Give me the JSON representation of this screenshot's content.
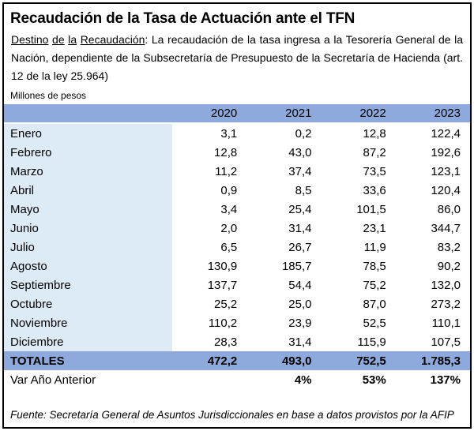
{
  "title": "Recaudación de la Tasa de Actuación ante el TFN",
  "intro": {
    "lead": "Destino de la Recaudación",
    "rest": ": La recaudación de la tasa ingresa a la Tesorería General de la Nación, dependiente de la Subsecretaría de Presupuesto de la Secretaría de Hacienda (art. 12 de la ley 25.964)"
  },
  "unit_label": "Millones de pesos",
  "table": {
    "year_headers": [
      "2020",
      "2021",
      "2022",
      "2023"
    ],
    "rows": [
      {
        "month": "Enero",
        "values": [
          "3,1",
          "0,2",
          "12,8",
          "122,4"
        ]
      },
      {
        "month": "Febrero",
        "values": [
          "12,8",
          "43,0",
          "87,2",
          "192,6"
        ]
      },
      {
        "month": "Marzo",
        "values": [
          "11,2",
          "37,4",
          "73,5",
          "123,1"
        ]
      },
      {
        "month": "Abril",
        "values": [
          "0,9",
          "8,5",
          "33,6",
          "120,4"
        ]
      },
      {
        "month": "Mayo",
        "values": [
          "3,4",
          "25,4",
          "101,5",
          "86,0"
        ]
      },
      {
        "month": "Junio",
        "values": [
          "2,0",
          "31,4",
          "23,1",
          "344,7"
        ]
      },
      {
        "month": "Julio",
        "values": [
          "6,5",
          "26,7",
          "11,9",
          "83,2"
        ]
      },
      {
        "month": "Agosto",
        "values": [
          "130,9",
          "185,7",
          "78,5",
          "90,2"
        ]
      },
      {
        "month": "Septiembre",
        "values": [
          "137,7",
          "54,4",
          "75,2",
          "132,0"
        ]
      },
      {
        "month": "Octubre",
        "values": [
          "25,2",
          "25,0",
          "87,0",
          "273,2"
        ]
      },
      {
        "month": "Noviembre",
        "values": [
          "110,2",
          "23,9",
          "52,5",
          "110,1"
        ]
      },
      {
        "month": "Diciembre",
        "values": [
          "28,3",
          "31,4",
          "115,9",
          "107,5"
        ]
      }
    ],
    "totals": {
      "label": "TOTALES",
      "values": [
        "472,2",
        "493,0",
        "752,5",
        "1.785,3"
      ]
    },
    "variation": {
      "label": "Var Año Anterior",
      "values": [
        "",
        "4%",
        "53%",
        "137%"
      ]
    }
  },
  "footer": "Fuente: Secretaría General de Asuntos Jurisdiccionales en base a datos provistos por la AFIP",
  "colors": {
    "header_fill": "#8EA9DB",
    "month_fill": "#DDEBF7",
    "border": "#000000"
  }
}
